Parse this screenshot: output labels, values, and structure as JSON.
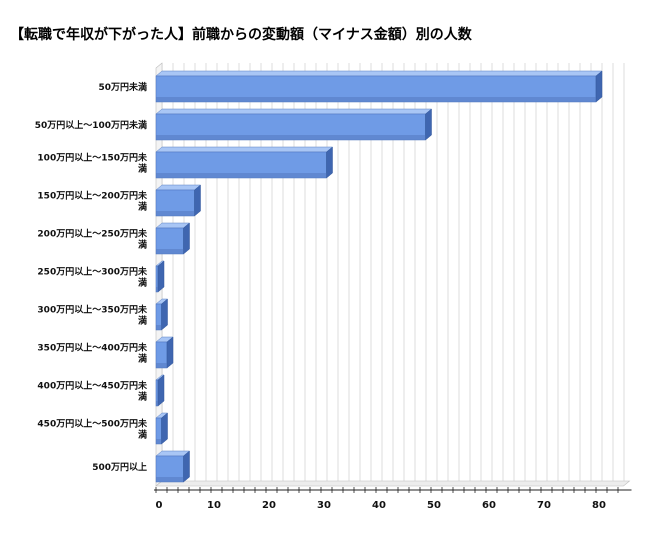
{
  "chart_data": {
    "type": "bar",
    "orientation": "horizontal",
    "title": "【転職で年収が下がった人】前職からの変動額（マイナス金額）別の人数",
    "categories": [
      [
        "50万円未満"
      ],
      [
        "50万円以上～100万円未満"
      ],
      [
        "100万円以上～150万円未",
        "満"
      ],
      [
        "150万円以上～200万円未",
        "満"
      ],
      [
        "200万円以上～250万円未",
        "満"
      ],
      [
        "250万円以上～300万円未",
        "満"
      ],
      [
        "300万円以上～350万円未",
        "満"
      ],
      [
        "350万円以上～400万円未",
        "満"
      ],
      [
        "400万円以上～450万円未",
        "満"
      ],
      [
        "450万円以上～500万円未",
        "満"
      ],
      [
        "500万円以上"
      ]
    ],
    "values": [
      80,
      49,
      31,
      7,
      5,
      0,
      1,
      2,
      0,
      1,
      5
    ],
    "xlim": [
      0,
      85
    ],
    "xticks": [
      0,
      10,
      20,
      30,
      40,
      50,
      60,
      70,
      80
    ],
    "grid": true,
    "colors": {
      "bar_front": "#6f9be6",
      "bar_top": "#a9c6f5",
      "bar_side": "#3f66b0",
      "grid": "#c8c8c8"
    }
  }
}
